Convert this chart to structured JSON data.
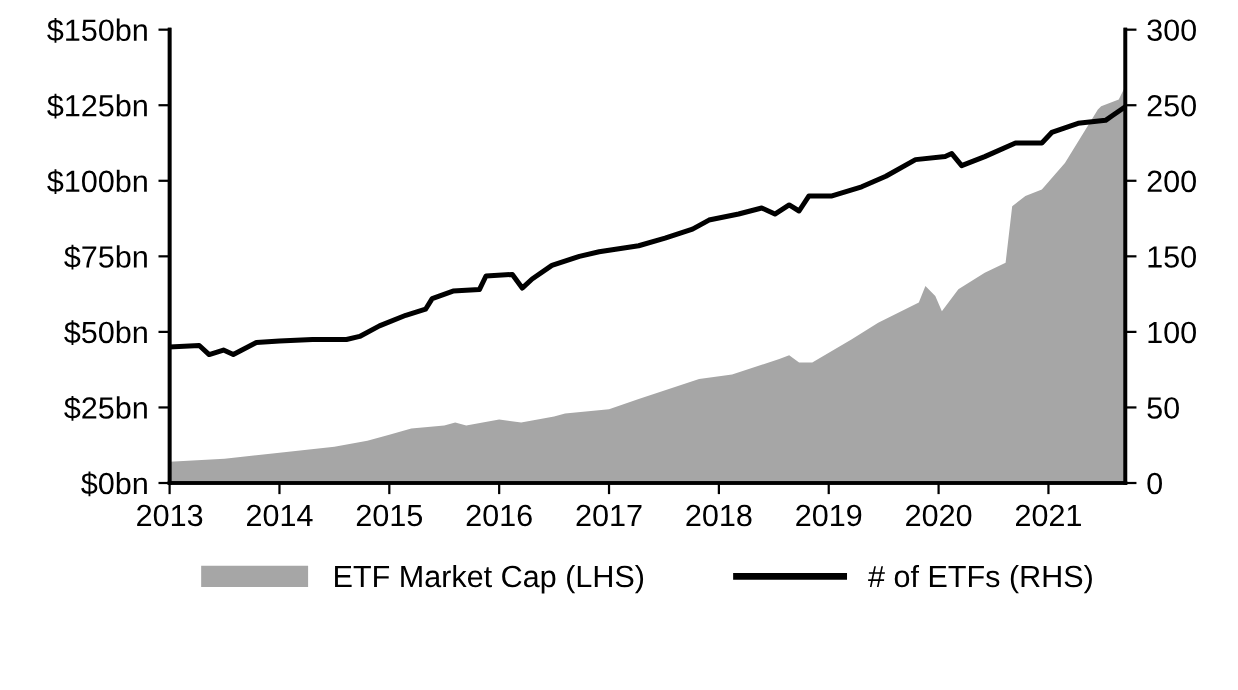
{
  "chart_data": {
    "type": "area",
    "xlim": [
      2013,
      2021.7
    ],
    "xticks": [
      2013,
      2014,
      2015,
      2016,
      2017,
      2018,
      2019,
      2020,
      2021
    ],
    "ylim": [
      0,
      150
    ],
    "yticks": [
      {
        "value": 0,
        "label": "$0bn"
      },
      {
        "value": 25,
        "label": "$25bn"
      },
      {
        "value": 50,
        "label": "$50bn"
      },
      {
        "value": 75,
        "label": "$75bn"
      },
      {
        "value": 100,
        "label": "$100bn"
      },
      {
        "value": 125,
        "label": "$125bn"
      },
      {
        "value": 150,
        "label": "$150bn"
      }
    ],
    "y2lim": [
      0,
      300
    ],
    "y2ticks": [
      0,
      50,
      100,
      150,
      200,
      250,
      300
    ],
    "grid": false,
    "legend": "bottom",
    "series": [
      {
        "name": "ETF Market Cap (LHS)",
        "color": "#a6a6a6",
        "x": [
          2013.0,
          2013.5,
          2014.0,
          2014.5,
          2014.8,
          2015.0,
          2015.2,
          2015.5,
          2015.6,
          2015.7,
          2016.0,
          2016.2,
          2016.5,
          2016.6,
          2017.0,
          2017.27,
          2017.82,
          2018.12,
          2018.55,
          2018.64,
          2018.73,
          2018.85,
          2019.21,
          2019.45,
          2019.82,
          2019.88,
          2019.97,
          2020.03,
          2020.18,
          2020.42,
          2020.61,
          2020.67,
          2020.79,
          2020.94,
          2021.15,
          2021.45,
          2021.48,
          2021.64,
          2021.7
        ],
        "values": [
          7,
          8,
          10,
          12,
          14,
          16,
          18,
          19,
          20,
          19,
          21,
          20,
          22,
          23,
          24.4,
          27.8,
          34.4,
          35.9,
          41,
          42.3,
          39.9,
          39.9,
          47.6,
          53,
          59.7,
          65.2,
          61.9,
          56.8,
          64.1,
          69.6,
          72.9,
          91.6,
          95,
          97.1,
          105.9,
          123.6,
          124.7,
          126.9,
          131.3
        ]
      },
      {
        "name": "# of ETFs (RHS)",
        "type": "line",
        "axis": "y2",
        "color": "#000000",
        "x": [
          2013.0,
          2013.27,
          2013.36,
          2013.49,
          2013.58,
          2013.79,
          2014.0,
          2014.3,
          2014.61,
          2014.73,
          2014.91,
          2015.15,
          2015.33,
          2015.39,
          2015.58,
          2015.82,
          2015.88,
          2016.12,
          2016.21,
          2016.3,
          2016.48,
          2016.73,
          2016.91,
          2017.27,
          2017.51,
          2017.76,
          2017.91,
          2018.18,
          2018.39,
          2018.51,
          2018.64,
          2018.73,
          2018.82,
          2019.03,
          2019.3,
          2019.52,
          2019.79,
          2020.06,
          2020.12,
          2020.21,
          2020.42,
          2020.7,
          2020.94,
          2021.03,
          2021.27,
          2021.52,
          2021.58,
          2021.7
        ],
        "values": [
          90,
          91,
          85,
          88,
          85,
          93,
          94,
          95,
          95,
          97,
          104,
          111,
          115,
          122,
          127,
          128,
          137,
          138,
          129,
          135,
          144,
          150,
          153,
          157,
          162,
          168,
          174,
          178,
          182,
          178,
          184,
          180,
          190,
          190,
          196,
          203,
          214,
          216,
          218,
          210,
          216,
          225,
          225,
          232,
          238,
          240,
          243,
          249
        ]
      }
    ]
  }
}
